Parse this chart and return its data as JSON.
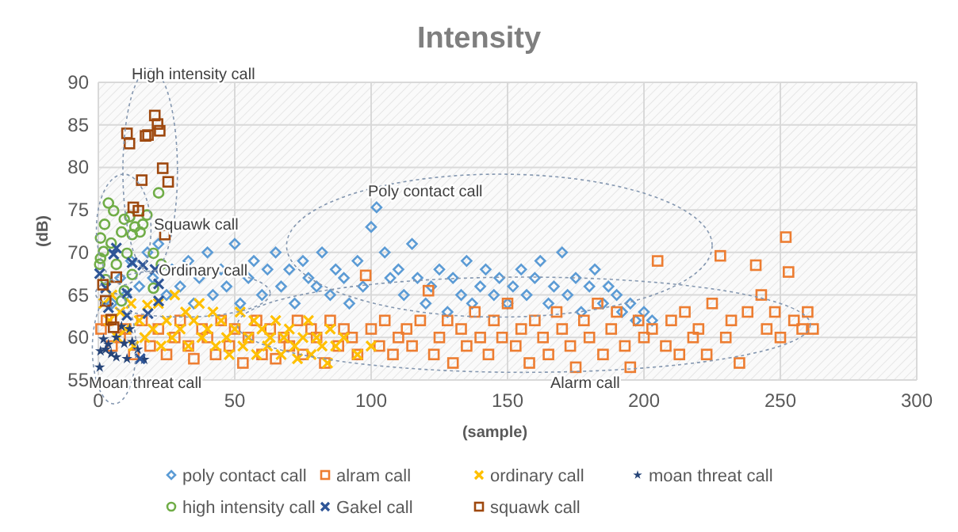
{
  "chart_data": {
    "type": "scatter",
    "title": "Intensity",
    "xlabel": "(sample)",
    "ylabel": "(dB)",
    "xlim": [
      0,
      300
    ],
    "xticks": [
      0,
      50,
      100,
      150,
      200,
      250,
      300
    ],
    "ylim": [
      55,
      90
    ],
    "yticks": [
      55,
      60,
      65,
      70,
      75,
      80,
      85,
      90
    ],
    "grid": true,
    "legend": "bottom",
    "annotations": [
      "High intensity call",
      "Squawk call",
      "Poly contact call",
      "Ordinary call",
      "Moan threat call",
      "Alarm call"
    ],
    "series": [
      {
        "name": "poly contact call",
        "color": "#5b9bd5",
        "marker": "diamond",
        "x": [
          5,
          8,
          10,
          12,
          15,
          18,
          20,
          22,
          25,
          27,
          30,
          33,
          35,
          37,
          40,
          42,
          45,
          47,
          50,
          52,
          55,
          57,
          60,
          62,
          65,
          67,
          70,
          72,
          75,
          77,
          80,
          82,
          85,
          87,
          90,
          92,
          95,
          97,
          100,
          102,
          105,
          107,
          110,
          112,
          115,
          117,
          120,
          122,
          125,
          128,
          130,
          133,
          135,
          137,
          140,
          142,
          145,
          147,
          150,
          152,
          155,
          157,
          160,
          162,
          165,
          167,
          170,
          172,
          175,
          177,
          180,
          182,
          185,
          187,
          190,
          192,
          195,
          197,
          200,
          203
        ],
        "values": [
          64,
          67,
          65,
          69,
          66,
          70,
          67,
          71,
          65,
          68,
          66,
          69,
          64,
          67,
          70,
          65,
          68,
          66,
          71,
          64,
          67,
          69,
          65,
          68,
          70,
          66,
          68,
          64,
          69,
          67,
          66,
          70,
          65,
          68,
          67,
          64,
          69,
          66,
          73,
          75.3,
          70,
          67,
          68,
          65,
          71,
          67,
          64,
          66,
          68,
          63,
          67,
          65,
          69,
          64,
          66,
          68,
          65,
          67,
          64,
          66,
          68,
          65,
          67,
          69,
          64,
          66,
          70,
          65,
          67,
          63,
          66,
          68,
          64,
          66,
          65,
          63,
          64,
          62,
          63,
          62
        ]
      },
      {
        "name": "alram call",
        "color": "#ed7d31",
        "marker": "square",
        "x": [
          1,
          3,
          5,
          8,
          10,
          13,
          16,
          19,
          22,
          25,
          28,
          30,
          33,
          35,
          38,
          40,
          43,
          45,
          48,
          50,
          53,
          55,
          58,
          60,
          63,
          65,
          68,
          70,
          73,
          75,
          78,
          80,
          83,
          85,
          88,
          90,
          93,
          95,
          98,
          100,
          103,
          105,
          108,
          110,
          113,
          115,
          118,
          121,
          123,
          125,
          128,
          130,
          133,
          135,
          138,
          140,
          143,
          145,
          148,
          150,
          153,
          155,
          158,
          160,
          163,
          165,
          168,
          170,
          173,
          175,
          178,
          180,
          183,
          185,
          188,
          190,
          193,
          195,
          198,
          200,
          203,
          205,
          208,
          210,
          213,
          215,
          218,
          220,
          223,
          225,
          228,
          230,
          232,
          235,
          238,
          241,
          243,
          245,
          248,
          250,
          252,
          253,
          255,
          258,
          260,
          262
        ],
        "values": [
          61,
          62,
          59,
          60,
          61,
          58,
          62,
          59,
          61,
          58,
          60,
          62,
          59,
          57.5,
          61,
          60,
          58,
          62,
          59,
          61,
          57,
          60,
          62,
          58,
          61,
          57.5,
          60,
          59,
          62,
          58,
          61,
          60,
          57,
          62,
          59,
          61,
          60,
          58,
          67.3,
          61,
          59,
          62,
          58,
          60,
          61,
          59,
          62,
          65.5,
          58,
          60,
          62,
          57,
          61,
          59,
          63,
          60,
          58,
          62,
          60,
          64,
          59,
          61,
          57,
          62,
          60,
          58,
          63,
          61,
          59,
          56.5,
          62,
          60,
          64,
          58,
          61,
          63,
          59,
          56.5,
          62,
          60,
          61,
          69,
          59,
          62,
          58,
          63,
          60,
          61,
          58,
          64,
          69.6,
          60,
          62,
          57,
          63,
          68.5,
          65,
          61,
          63,
          60,
          71.8,
          67.7,
          62,
          61,
          63,
          61
        ]
      },
      {
        "name": "ordinary call",
        "color": "#ffc000",
        "marker": "cross",
        "x": [
          2,
          4,
          5,
          7,
          8,
          10,
          12,
          13,
          15,
          17,
          18,
          20,
          22,
          23,
          25,
          27,
          28,
          30,
          32,
          33,
          35,
          37,
          38,
          40,
          42,
          43,
          45,
          47,
          48,
          50,
          52,
          53,
          55,
          57,
          58,
          60,
          62,
          63,
          65,
          67,
          68,
          70,
          72,
          73,
          75,
          77,
          78,
          80,
          82,
          84,
          85,
          87,
          90,
          95,
          100
        ],
        "values": [
          64,
          62,
          65,
          60,
          63,
          61,
          64,
          59,
          62,
          60,
          63.8,
          61,
          64,
          59,
          62,
          60,
          65,
          61,
          63,
          59,
          62,
          64,
          60,
          61,
          63,
          59,
          62,
          60,
          58,
          61,
          63,
          59,
          60,
          62,
          58,
          61,
          59,
          60,
          62,
          58,
          60,
          61,
          59,
          57.5,
          60,
          62,
          58,
          60,
          59,
          57,
          61,
          59,
          60,
          58,
          59
        ]
      },
      {
        "name": "moan threat call",
        "color": "#264478",
        "marker": "star",
        "x": [
          0.5,
          0.8,
          2.7,
          4.7,
          6.6,
          10.5,
          6.6,
          9.5,
          12.4,
          11.5,
          14.4,
          16.8,
          1.9,
          3.7,
          8.5
        ],
        "values": [
          56.5,
          58.4,
          58.6,
          58.1,
          57.7,
          57.5,
          60,
          59.3,
          59.5,
          61,
          58.6,
          57.4,
          59.8,
          59.2,
          61.3
        ]
      },
      {
        "name": "high intensity call",
        "color": "#70ad47",
        "marker": "circle",
        "x": [
          3.7,
          5.6,
          2.3,
          9.5,
          11.5,
          13.4,
          16.3,
          17.8,
          22.1,
          0.8,
          4.7,
          8.5,
          12.4,
          15.3,
          0.8,
          0.5,
          1.9,
          10.5,
          20.2,
          23.1,
          6.6,
          12.4,
          20.2,
          9.5,
          2.7,
          8.5
        ],
        "values": [
          75.8,
          74.9,
          73.3,
          73.9,
          74.2,
          73,
          73.3,
          74.4,
          77,
          71.7,
          71.1,
          72.4,
          72.1,
          72.4,
          69.3,
          68.6,
          70.1,
          69.9,
          69.9,
          68.6,
          68.6,
          67.4,
          65.8,
          65.5,
          66.8,
          64.3
        ]
      },
      {
        "name": "Gakel call",
        "color": "#2e5597",
        "marker": "cross",
        "x": [
          0.5,
          5.6,
          6.6,
          12.4,
          16.3,
          20.8,
          2.7,
          10.5,
          22.1,
          3.7,
          10.5,
          18.2,
          15.3,
          22.1
        ],
        "values": [
          67.5,
          69.8,
          70.5,
          68.8,
          68.5,
          68,
          65.8,
          65.2,
          66.3,
          63.5,
          62.6,
          62.8,
          57.5,
          64.3
        ]
      },
      {
        "name": "squawk call",
        "color": "#9e480e",
        "marker": "square",
        "x": [
          20.7,
          21.7,
          22.5,
          10.5,
          11.4,
          17.3,
          18.2,
          23.6,
          25.6,
          15.9,
          12.8,
          14.7,
          24.4,
          1.7,
          6.6,
          4.7,
          2.7,
          5.6
        ],
        "values": [
          86.1,
          85.1,
          84.3,
          84,
          82.8,
          83.7,
          83.8,
          79.9,
          78.3,
          78.5,
          75.3,
          74.9,
          72.1,
          66.2,
          67.1,
          62.1,
          64.3,
          61.2
        ]
      }
    ]
  }
}
